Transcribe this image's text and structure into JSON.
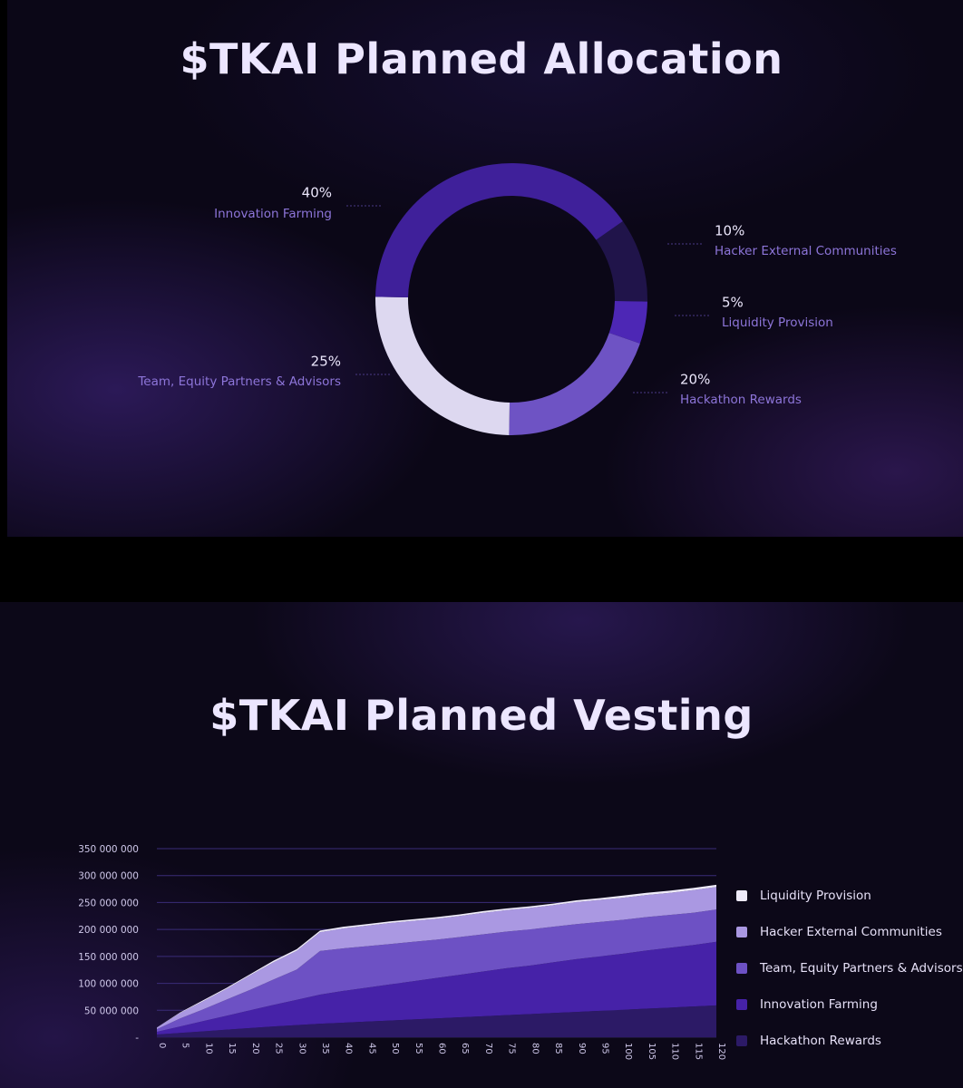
{
  "allocation": {
    "title": "$TKAI Planned Allocation",
    "chart_data": {
      "type": "pie",
      "variant": "donut",
      "title": "$TKAI Planned Allocation",
      "slices": [
        {
          "label": "Hacker External Communities",
          "percent_label": "10%",
          "value": 10,
          "color": "#20144a"
        },
        {
          "label": "Liquidity Provision",
          "percent_label": "5%",
          "value": 5,
          "color": "#4d27b5"
        },
        {
          "label": "Hackathon Rewards",
          "percent_label": "20%",
          "value": 20,
          "color": "#6e53c4"
        },
        {
          "label": "Team, Equity Partners & Advisors",
          "percent_label": "25%",
          "value": 25,
          "color": "#ddd8f0"
        },
        {
          "label": "Innovation Farming",
          "percent_label": "40%",
          "value": 40,
          "color": "#3f209a"
        }
      ]
    }
  },
  "vesting": {
    "title": "$TKAI Planned Vesting",
    "chart_data": {
      "type": "area",
      "stacked": true,
      "title": "$TKAI Planned Vesting",
      "xlabel": "",
      "ylabel": "",
      "x": [
        0,
        5,
        10,
        15,
        20,
        25,
        30,
        35,
        40,
        45,
        50,
        55,
        60,
        65,
        70,
        75,
        80,
        85,
        90,
        95,
        100,
        105,
        110,
        115,
        120
      ],
      "x_tick_labels": [
        "0",
        "5",
        "10",
        "15",
        "20",
        "25",
        "30",
        "35",
        "40",
        "45",
        "50",
        "55",
        "60",
        "65",
        "70",
        "75",
        "80",
        "85",
        "90",
        "95",
        "100",
        "105",
        "110",
        "115",
        "120"
      ],
      "ylim": [
        0,
        350000000
      ],
      "y_ticks": [
        0,
        50000000,
        100000000,
        150000000,
        200000000,
        250000000,
        300000000,
        350000000
      ],
      "y_tick_labels": [
        "-",
        "50 000 000",
        "100 000 000",
        "150 000 000",
        "200 000 000",
        "250 000 000",
        "300 000 000",
        "350 000 000"
      ],
      "grid": true,
      "legend_position": "right",
      "series": [
        {
          "name": "Hackathon Rewards",
          "color": "#2c1a66",
          "values": [
            5000000,
            8000000,
            11000000,
            14000000,
            17000000,
            20000000,
            22500000,
            25000000,
            27000000,
            29000000,
            31000000,
            33000000,
            35000000,
            37000000,
            39000000,
            41000000,
            43000000,
            45000000,
            47000000,
            49000000,
            51000000,
            53000000,
            55000000,
            57000000,
            59000000
          ]
        },
        {
          "name": "Innovation Farming",
          "color": "#4622a8",
          "values": [
            5000000,
            12000000,
            19000000,
            26000000,
            33000000,
            40000000,
            47000000,
            54000000,
            59000000,
            63000000,
            67000000,
            71000000,
            75000000,
            79000000,
            83000000,
            87000000,
            90000000,
            94000000,
            98000000,
            101000000,
            104000000,
            108000000,
            111000000,
            114000000,
            118000000
          ]
        },
        {
          "name": "Team, Equity Partners & Advisors",
          "color": "#6d51c4",
          "values": [
            5000000,
            15000000,
            22000000,
            30000000,
            38000000,
            47000000,
            56000000,
            81000000,
            79000000,
            77000000,
            75000000,
            73000000,
            71000000,
            70000000,
            69000000,
            68000000,
            67000000,
            66000000,
            65000000,
            64000000,
            63000000,
            62000000,
            61000000,
            60000000,
            60000000
          ]
        },
        {
          "name": "Hacker External Communities",
          "color": "#aa98e2",
          "values": [
            3000000,
            10000000,
            15000000,
            20000000,
            27000000,
            32000000,
            35000000,
            35000000,
            37000000,
            38000000,
            39000000,
            39000000,
            39000000,
            39000000,
            40000000,
            40000000,
            40000000,
            40000000,
            41000000,
            41000000,
            41000000,
            41000000,
            41000000,
            42000000,
            42000000
          ]
        },
        {
          "name": "Liquidity Provision",
          "color": "#efebfa",
          "values": [
            0,
            1000000,
            2000000,
            2000000,
            2000000,
            3000000,
            3000000,
            3000000,
            3000000,
            3000000,
            3000000,
            3000000,
            3000000,
            3000000,
            3000000,
            3000000,
            3000000,
            3000000,
            3000000,
            3000000,
            4000000,
            4000000,
            4000000,
            4000000,
            4000000
          ]
        }
      ]
    }
  }
}
